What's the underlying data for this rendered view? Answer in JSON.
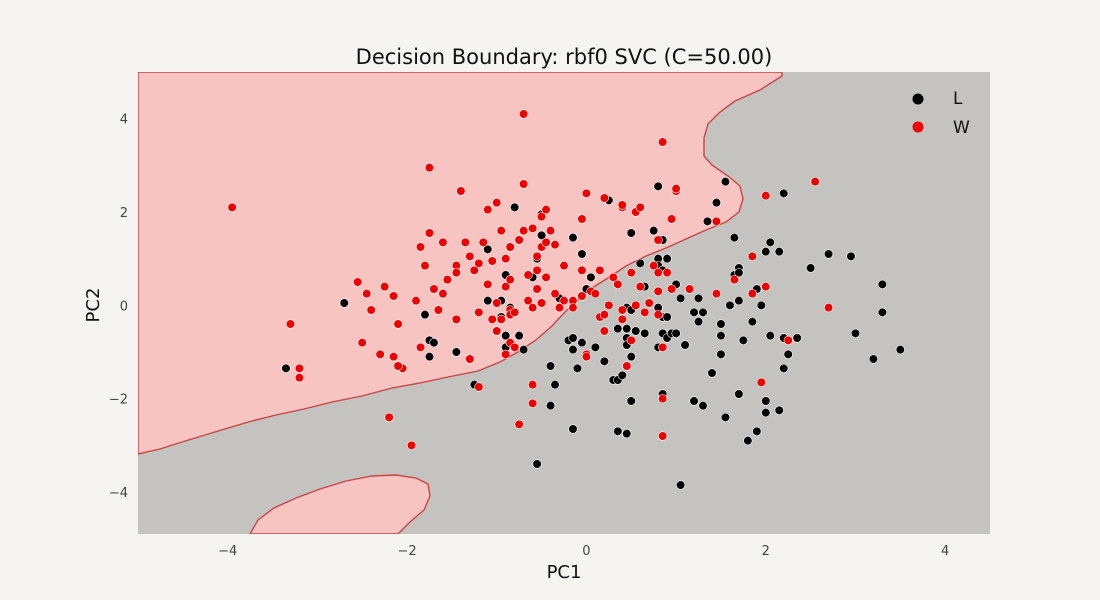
{
  "chart_data": {
    "type": "scatter",
    "title": "Decision Boundary: rbf0 SVC (C=50.00)",
    "xlabel": "PC1",
    "ylabel": "PC2",
    "xlim": [
      -5,
      4.5
    ],
    "ylim": [
      -4.9,
      5.0
    ],
    "xticks": [
      "−4",
      "−2",
      "0",
      "2",
      "4"
    ],
    "xtick_values": [
      -4,
      -2,
      0,
      2,
      4
    ],
    "yticks": [
      "−4",
      "−2",
      "0",
      "2",
      "4"
    ],
    "ytick_values": [
      -4,
      -2,
      0,
      2,
      4
    ],
    "legend_position": "top-right",
    "grid": false,
    "region_colors": {
      "W": "#f8c4c2",
      "L": "#c4c3bf"
    },
    "boundary_color": "#c84545",
    "series": [
      {
        "name": "L",
        "color": "#000000",
        "points": [
          [
            -3.35,
            -1.35
          ],
          [
            -2.7,
            0.05
          ],
          [
            -1.8,
            -0.2
          ],
          [
            -1.75,
            -0.75
          ],
          [
            -1.7,
            -0.8
          ],
          [
            -1.75,
            -1.1
          ],
          [
            -1.45,
            -1.0
          ],
          [
            -1.25,
            -1.7
          ],
          [
            -1.1,
            0.1
          ],
          [
            -1.1,
            1.2
          ],
          [
            -0.95,
            -0.25
          ],
          [
            -0.95,
            0.1
          ],
          [
            -0.9,
            -0.9
          ],
          [
            -0.9,
            -0.65
          ],
          [
            -0.9,
            0.65
          ],
          [
            -0.85,
            -0.05
          ],
          [
            -0.8,
            2.1
          ],
          [
            -0.75,
            -0.65
          ],
          [
            -0.7,
            -0.95
          ],
          [
            -0.6,
            0.6
          ],
          [
            -0.55,
            1.0
          ],
          [
            -0.55,
            -3.4
          ],
          [
            -0.5,
            1.5
          ],
          [
            -0.5,
            1.95
          ],
          [
            -0.4,
            -1.3
          ],
          [
            -0.4,
            -2.15
          ],
          [
            -0.35,
            -1.7
          ],
          [
            -0.3,
            0.15
          ],
          [
            -0.2,
            -0.75
          ],
          [
            -0.15,
            1.45
          ],
          [
            -0.15,
            -0.7
          ],
          [
            -0.15,
            -0.95
          ],
          [
            -0.15,
            -2.65
          ],
          [
            -0.1,
            -1.35
          ],
          [
            -0.05,
            -0.8
          ],
          [
            -0.05,
            1.1
          ],
          [
            0.0,
            0.35
          ],
          [
            0.0,
            -1.1
          ],
          [
            0.05,
            0.6
          ],
          [
            0.1,
            -0.9
          ],
          [
            0.2,
            -1.2
          ],
          [
            0.25,
            2.25
          ],
          [
            0.3,
            -1.6
          ],
          [
            0.35,
            -1.6
          ],
          [
            0.35,
            -0.5
          ],
          [
            0.35,
            -2.7
          ],
          [
            0.4,
            -1.5
          ],
          [
            0.45,
            -0.05
          ],
          [
            0.45,
            -0.5
          ],
          [
            0.45,
            -0.7
          ],
          [
            0.45,
            -0.85
          ],
          [
            0.45,
            -2.75
          ],
          [
            0.5,
            1.55
          ],
          [
            0.5,
            -0.1
          ],
          [
            0.5,
            -2.05
          ],
          [
            0.5,
            -1.1
          ],
          [
            0.55,
            -0.55
          ],
          [
            0.6,
            0.9
          ],
          [
            0.65,
            0.4
          ],
          [
            0.65,
            -0.6
          ],
          [
            0.75,
            1.6
          ],
          [
            0.8,
            1.0
          ],
          [
            0.8,
            0.85
          ],
          [
            0.8,
            2.55
          ],
          [
            0.8,
            -0.05
          ],
          [
            0.8,
            -0.9
          ],
          [
            0.85,
            1.4
          ],
          [
            0.85,
            0.75
          ],
          [
            0.85,
            -0.25
          ],
          [
            0.85,
            -0.6
          ],
          [
            0.85,
            -1.9
          ],
          [
            0.9,
            -0.7
          ],
          [
            0.9,
            1.0
          ],
          [
            0.9,
            -0.25
          ],
          [
            0.95,
            -0.6
          ],
          [
            1.0,
            0.45
          ],
          [
            1.0,
            -0.6
          ],
          [
            1.05,
            0.15
          ],
          [
            1.05,
            -3.85
          ],
          [
            1.1,
            -0.85
          ],
          [
            1.2,
            -0.15
          ],
          [
            1.2,
            -2.05
          ],
          [
            1.25,
            0.15
          ],
          [
            1.25,
            -0.35
          ],
          [
            1.3,
            -2.15
          ],
          [
            1.3,
            -0.15
          ],
          [
            1.35,
            1.8
          ],
          [
            1.4,
            -1.45
          ],
          [
            1.45,
            2.2
          ],
          [
            1.5,
            -0.65
          ],
          [
            1.5,
            -1.05
          ],
          [
            1.5,
            -0.4
          ],
          [
            1.55,
            -2.4
          ],
          [
            1.55,
            2.65
          ],
          [
            1.6,
            0.0
          ],
          [
            1.65,
            1.45
          ],
          [
            1.65,
            0.65
          ],
          [
            1.7,
            0.8
          ],
          [
            1.7,
            0.7
          ],
          [
            1.7,
            0.1
          ],
          [
            1.7,
            -1.9
          ],
          [
            1.75,
            -0.75
          ],
          [
            1.8,
            -2.9
          ],
          [
            1.85,
            -0.35
          ],
          [
            1.9,
            -2.7
          ],
          [
            1.9,
            0.35
          ],
          [
            1.95,
            0.0
          ],
          [
            2.0,
            -2.3
          ],
          [
            2.0,
            -2.05
          ],
          [
            2.0,
            1.15
          ],
          [
            2.05,
            1.35
          ],
          [
            2.05,
            -0.65
          ],
          [
            2.15,
            1.15
          ],
          [
            2.15,
            -2.25
          ],
          [
            2.2,
            2.4
          ],
          [
            2.2,
            -0.7
          ],
          [
            2.2,
            -1.35
          ],
          [
            2.25,
            -1.05
          ],
          [
            2.35,
            -0.7
          ],
          [
            2.5,
            0.8
          ],
          [
            2.7,
            1.1
          ],
          [
            2.95,
            1.05
          ],
          [
            3.0,
            -0.6
          ],
          [
            3.2,
            -1.15
          ],
          [
            3.3,
            0.45
          ],
          [
            3.3,
            -0.15
          ],
          [
            3.5,
            -0.95
          ]
        ]
      },
      {
        "name": "W",
        "color": "#ee0000",
        "points": [
          [
            -3.95,
            2.1
          ],
          [
            -3.3,
            -0.4
          ],
          [
            -3.2,
            -1.35
          ],
          [
            -3.2,
            -1.55
          ],
          [
            -2.55,
            0.5
          ],
          [
            -2.5,
            -0.8
          ],
          [
            -2.45,
            0.25
          ],
          [
            -2.4,
            -0.1
          ],
          [
            -2.3,
            -1.05
          ],
          [
            -2.25,
            0.4
          ],
          [
            -2.2,
            -2.4
          ],
          [
            -2.15,
            -1.1
          ],
          [
            -2.15,
            0.2
          ],
          [
            -2.1,
            -0.4
          ],
          [
            -2.05,
            -1.35
          ],
          [
            -2.1,
            -1.3
          ],
          [
            -1.95,
            -3.0
          ],
          [
            -1.9,
            0.1
          ],
          [
            -1.85,
            1.25
          ],
          [
            -1.85,
            -0.9
          ],
          [
            -1.8,
            0.85
          ],
          [
            -1.75,
            2.95
          ],
          [
            -1.75,
            1.55
          ],
          [
            -1.7,
            0.35
          ],
          [
            -1.65,
            -0.1
          ],
          [
            -1.6,
            1.35
          ],
          [
            -1.6,
            0.25
          ],
          [
            -1.55,
            0.55
          ],
          [
            -1.45,
            -0.3
          ],
          [
            -1.45,
            0.85
          ],
          [
            -1.45,
            0.7
          ],
          [
            -1.4,
            2.45
          ],
          [
            -1.35,
            1.35
          ],
          [
            -1.3,
            1.05
          ],
          [
            -1.3,
            -1.15
          ],
          [
            -1.25,
            0.75
          ],
          [
            -1.2,
            0.9
          ],
          [
            -1.2,
            -1.75
          ],
          [
            -1.2,
            -0.15
          ],
          [
            -1.15,
            1.35
          ],
          [
            -1.1,
            0.45
          ],
          [
            -1.1,
            2.05
          ],
          [
            -1.05,
            0.95
          ],
          [
            -1.05,
            -0.3
          ],
          [
            -1.0,
            0.05
          ],
          [
            -1.0,
            -0.55
          ],
          [
            -1.0,
            2.2
          ],
          [
            -0.95,
            1.6
          ],
          [
            -0.95,
            -0.3
          ],
          [
            -0.9,
            1.0
          ],
          [
            -0.9,
            -1.05
          ],
          [
            -0.9,
            0.4
          ],
          [
            -0.85,
            0.55
          ],
          [
            -0.85,
            -0.1
          ],
          [
            -0.85,
            -0.2
          ],
          [
            -0.85,
            -0.8
          ],
          [
            -0.85,
            1.25
          ],
          [
            -0.8,
            -0.15
          ],
          [
            -0.8,
            -0.9
          ],
          [
            -0.75,
            1.4
          ],
          [
            -0.75,
            -2.55
          ],
          [
            -0.7,
            1.6
          ],
          [
            -0.7,
            4.1
          ],
          [
            -0.7,
            2.6
          ],
          [
            -0.65,
            0.65
          ],
          [
            -0.65,
            0.1
          ],
          [
            -0.6,
            1.65
          ],
          [
            -0.6,
            -0.05
          ],
          [
            -0.6,
            -1.7
          ],
          [
            -0.6,
            -2.1
          ],
          [
            -0.55,
            1.05
          ],
          [
            -0.55,
            0.75
          ],
          [
            -0.55,
            0.35
          ],
          [
            -0.5,
            1.9
          ],
          [
            -0.5,
            1.25
          ],
          [
            -0.5,
            0.05
          ],
          [
            -0.45,
            2.05
          ],
          [
            -0.45,
            1.35
          ],
          [
            -0.45,
            0.6
          ],
          [
            -0.4,
            1.6
          ],
          [
            -0.35,
            1.3
          ],
          [
            -0.35,
            0.25
          ],
          [
            -0.3,
            -0.05
          ],
          [
            -0.25,
            0.1
          ],
          [
            -0.25,
            0.85
          ],
          [
            -0.15,
            0.1
          ],
          [
            -0.15,
            -0.05
          ],
          [
            -0.05,
            1.85
          ],
          [
            -0.05,
            0.2
          ],
          [
            -0.05,
            0.75
          ],
          [
            0.0,
            2.4
          ],
          [
            0.0,
            -1.05
          ],
          [
            0.0,
            -1.1
          ],
          [
            0.05,
            0.3
          ],
          [
            0.15,
            0.75
          ],
          [
            0.15,
            -0.25
          ],
          [
            0.1,
            0.25
          ],
          [
            0.2,
            -0.2
          ],
          [
            0.2,
            -0.55
          ],
          [
            0.2,
            2.3
          ],
          [
            0.25,
            0.0
          ],
          [
            0.3,
            0.6
          ],
          [
            0.35,
            0.45
          ],
          [
            0.4,
            -0.1
          ],
          [
            0.4,
            -0.3
          ],
          [
            0.4,
            2.1
          ],
          [
            0.4,
            2.15
          ],
          [
            0.45,
            -1.3
          ],
          [
            0.5,
            0.7
          ],
          [
            0.5,
            -0.75
          ],
          [
            0.55,
            2.0
          ],
          [
            0.55,
            0.0
          ],
          [
            0.6,
            2.1
          ],
          [
            0.6,
            0.4
          ],
          [
            0.65,
            -0.15
          ],
          [
            0.7,
            0.05
          ],
          [
            0.75,
            0.85
          ],
          [
            0.8,
            0.7
          ],
          [
            0.8,
            0.3
          ],
          [
            0.8,
            -0.2
          ],
          [
            0.8,
            1.4
          ],
          [
            0.85,
            3.5
          ],
          [
            0.85,
            -0.9
          ],
          [
            0.85,
            -2.0
          ],
          [
            0.85,
            -2.8
          ],
          [
            0.9,
            0.7
          ],
          [
            0.95,
            1.85
          ],
          [
            0.95,
            0.35
          ],
          [
            1.0,
            2.45
          ],
          [
            1.0,
            2.5
          ],
          [
            1.15,
            0.35
          ],
          [
            1.45,
            1.8
          ],
          [
            1.45,
            0.25
          ],
          [
            1.65,
            0.55
          ],
          [
            1.85,
            0.25
          ],
          [
            1.85,
            1.05
          ],
          [
            1.95,
            -1.65
          ],
          [
            2.0,
            2.35
          ],
          [
            2.0,
            0.4
          ],
          [
            2.25,
            -0.75
          ],
          [
            2.55,
            2.65
          ],
          [
            2.7,
            -0.05
          ]
        ]
      }
    ]
  }
}
